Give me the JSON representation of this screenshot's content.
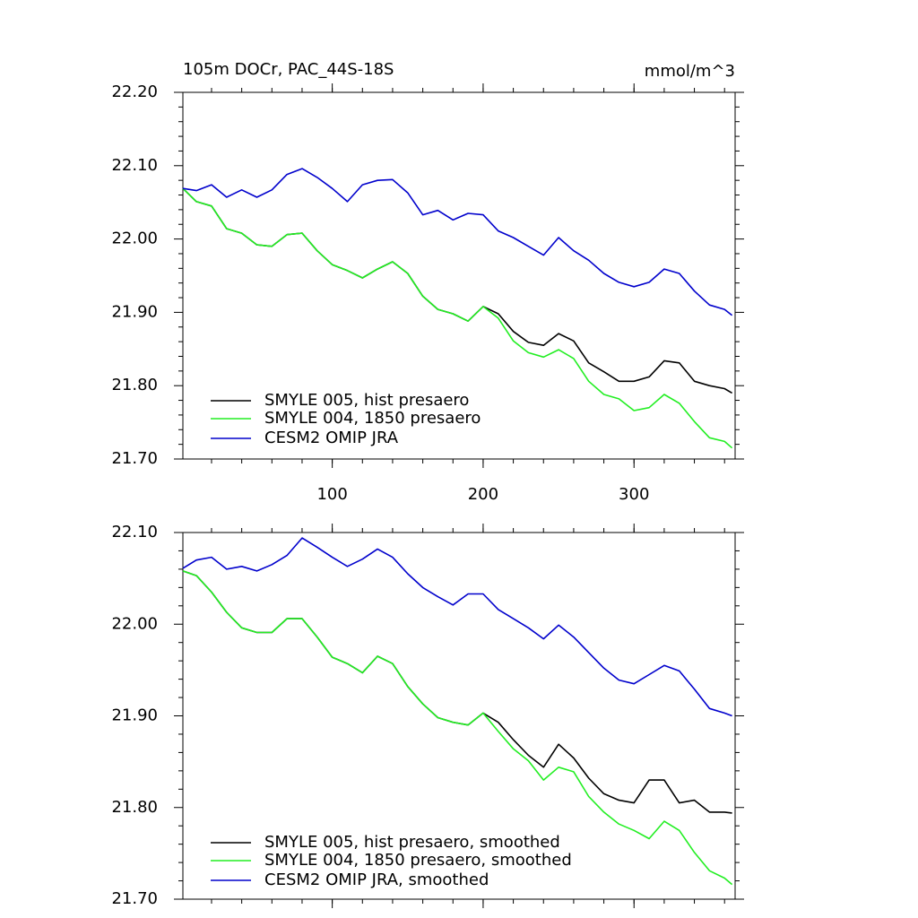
{
  "chart_data": [
    {
      "type": "line",
      "title": "105m DOCr, PAC_44S-18S",
      "units": "mmol/m^3",
      "x": [
        1,
        10,
        20,
        30,
        40,
        50,
        60,
        70,
        80,
        90,
        100,
        110,
        120,
        130,
        140,
        150,
        160,
        170,
        180,
        190,
        200,
        210,
        220,
        230,
        240,
        250,
        260,
        270,
        280,
        290,
        300,
        310,
        320,
        330,
        340,
        350,
        360,
        365
      ],
      "xlim": [
        1,
        367
      ],
      "xticks": [
        100,
        200,
        300
      ],
      "xtick_labels": true,
      "ylim": [
        21.7,
        22.2
      ],
      "yticks": [
        {
          "value": 21.7,
          "label": "21.70"
        },
        {
          "value": 21.8,
          "label": "21.80"
        },
        {
          "value": 21.9,
          "label": "21.90"
        },
        {
          "value": 22.0,
          "label": "22.00"
        },
        {
          "value": 22.1,
          "label": "22.10"
        },
        {
          "value": 22.2,
          "label": "22.20"
        }
      ],
      "series": [
        {
          "name": "SMYLE 005, hist presaero",
          "color": "#000000",
          "values": [
            22.069,
            22.051,
            22.045,
            22.014,
            22.008,
            21.992,
            21.99,
            22.006,
            22.008,
            21.984,
            21.965,
            21.957,
            21.947,
            21.959,
            21.969,
            21.953,
            21.922,
            21.904,
            21.898,
            21.888,
            21.908,
            21.898,
            21.874,
            21.859,
            21.855,
            21.871,
            21.861,
            21.831,
            21.819,
            21.806,
            21.806,
            21.812,
            21.834,
            21.831,
            21.806,
            21.8,
            21.796,
            21.79
          ]
        },
        {
          "name": "SMYLE 004, 1850 presaero",
          "color": "#22ee22",
          "values": [
            22.069,
            22.051,
            22.045,
            22.014,
            22.008,
            21.992,
            21.99,
            22.006,
            22.008,
            21.984,
            21.965,
            21.957,
            21.947,
            21.959,
            21.969,
            21.953,
            21.922,
            21.904,
            21.898,
            21.888,
            21.908,
            21.892,
            21.861,
            21.845,
            21.839,
            21.849,
            21.837,
            21.806,
            21.788,
            21.782,
            21.766,
            21.77,
            21.788,
            21.776,
            21.751,
            21.729,
            21.724,
            21.715
          ]
        },
        {
          "name": "CESM2 OMIP JRA",
          "color": "#0000cc",
          "values": [
            22.069,
            22.066,
            22.074,
            22.057,
            22.067,
            22.057,
            22.067,
            22.088,
            22.096,
            22.084,
            22.069,
            22.051,
            22.074,
            22.08,
            22.081,
            22.063,
            22.033,
            22.039,
            22.026,
            22.035,
            22.033,
            22.011,
            22.002,
            21.99,
            21.978,
            22.002,
            21.984,
            21.971,
            21.953,
            21.941,
            21.935,
            21.941,
            21.959,
            21.953,
            21.929,
            21.91,
            21.904,
            21.896
          ]
        }
      ]
    },
    {
      "type": "line",
      "x": [
        1,
        10,
        20,
        30,
        40,
        50,
        60,
        70,
        80,
        90,
        100,
        110,
        120,
        130,
        140,
        150,
        160,
        170,
        180,
        190,
        200,
        210,
        220,
        230,
        240,
        250,
        260,
        270,
        280,
        290,
        300,
        310,
        320,
        330,
        340,
        350,
        360,
        365
      ],
      "xlim": [
        1,
        367
      ],
      "xticks": [
        100,
        200,
        300
      ],
      "xtick_labels": false,
      "ylim": [
        21.7,
        22.1
      ],
      "yticks": [
        {
          "value": 21.7,
          "label": "21.70"
        },
        {
          "value": 21.8,
          "label": "21.80"
        },
        {
          "value": 21.9,
          "label": "21.90"
        },
        {
          "value": 22.0,
          "label": "22.00"
        },
        {
          "value": 22.1,
          "label": "22.10"
        }
      ],
      "series": [
        {
          "name": "SMYLE 005, hist presaero, smoothed",
          "color": "#000000",
          "values": [
            22.058,
            22.053,
            22.035,
            22.013,
            21.996,
            21.991,
            21.991,
            22.006,
            22.006,
            21.986,
            21.964,
            21.957,
            21.947,
            21.965,
            21.957,
            21.932,
            21.913,
            21.898,
            21.893,
            21.89,
            21.903,
            21.893,
            21.874,
            21.857,
            21.844,
            21.869,
            21.854,
            21.832,
            21.815,
            21.808,
            21.805,
            21.83,
            21.83,
            21.805,
            21.808,
            21.795,
            21.795,
            21.794
          ]
        },
        {
          "name": "SMYLE 004, 1850 presaero, smoothed",
          "color": "#22ee22",
          "values": [
            22.058,
            22.053,
            22.035,
            22.013,
            21.996,
            21.991,
            21.991,
            22.006,
            22.006,
            21.986,
            21.964,
            21.957,
            21.947,
            21.965,
            21.957,
            21.932,
            21.913,
            21.898,
            21.893,
            21.89,
            21.903,
            21.883,
            21.864,
            21.851,
            21.83,
            21.844,
            21.839,
            21.812,
            21.795,
            21.782,
            21.775,
            21.766,
            21.785,
            21.775,
            21.751,
            21.731,
            21.723,
            21.716
          ]
        },
        {
          "name": "CESM2 OMIP JRA, smoothed",
          "color": "#0000cc",
          "values": [
            22.061,
            22.07,
            22.073,
            22.06,
            22.063,
            22.058,
            22.065,
            22.075,
            22.094,
            22.084,
            22.073,
            22.063,
            22.071,
            22.082,
            22.073,
            22.055,
            22.04,
            22.03,
            22.021,
            22.033,
            22.033,
            22.016,
            22.006,
            21.996,
            21.984,
            21.999,
            21.986,
            21.969,
            21.952,
            21.939,
            21.935,
            21.945,
            21.955,
            21.949,
            21.929,
            21.908,
            21.903,
            21.9
          ]
        }
      ]
    }
  ]
}
